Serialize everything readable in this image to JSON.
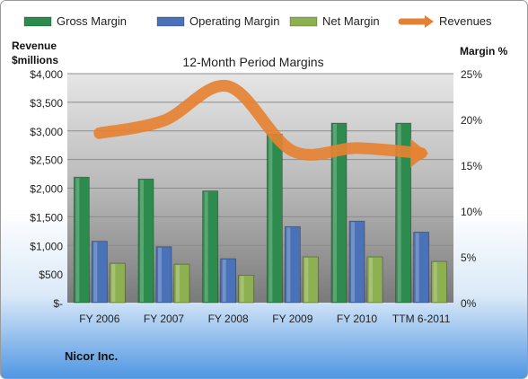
{
  "chart_data": {
    "type": "bar",
    "title": "12-Month Period Margins",
    "company": "Nicor Inc.",
    "left_axis_label_line1": "Revenue",
    "left_axis_label_line2": "$millions",
    "right_axis_label": "Margin %",
    "categories": [
      "FY 2006",
      "FY 2007",
      "FY 2008",
      "FY 2009",
      "FY 2010",
      "TTM 6-2011"
    ],
    "series": [
      {
        "name": "Gross Margin",
        "axis": "right",
        "color": "#2e8b4e",
        "values": [
          13.7,
          13.5,
          12.2,
          18.4,
          19.6,
          19.6
        ]
      },
      {
        "name": "Operating Margin",
        "axis": "right",
        "color": "#4a72b8",
        "values": [
          6.7,
          6.1,
          4.8,
          8.3,
          8.9,
          7.7
        ]
      },
      {
        "name": "Net Margin",
        "axis": "right",
        "color": "#8db050",
        "values": [
          4.3,
          4.2,
          3.0,
          5.0,
          5.0,
          4.5
        ]
      },
      {
        "name": "Revenues",
        "axis": "left",
        "type": "line",
        "color": "#e58232",
        "values": [
          2960,
          3180,
          3780,
          2650,
          2700,
          2610
        ]
      }
    ],
    "ylim_left": [
      0,
      4000
    ],
    "ylim_right": [
      0,
      25
    ],
    "left_ticks": [
      "$-",
      "$500",
      "$1,000",
      "$1,500",
      "$2,000",
      "$2,500",
      "$3,000",
      "$3,500",
      "$4,000"
    ],
    "right_ticks": [
      "0%",
      "5%",
      "10%",
      "15%",
      "20%",
      "25%"
    ],
    "legend_position": "top",
    "grid": true
  }
}
